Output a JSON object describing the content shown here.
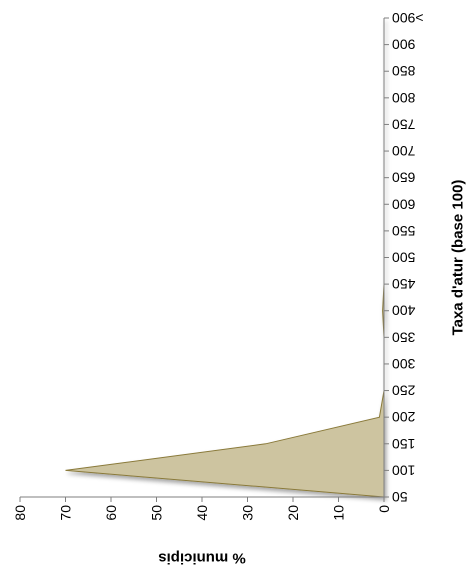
{
  "chart_data": {
    "type": "area",
    "orientation": "rotated-90",
    "title": "",
    "xlabel": "Taxa d'atur (base 100)",
    "ylabel": "% municipis",
    "categories": [
      "50",
      "100",
      "150",
      "200",
      "250",
      "300",
      "350",
      "400",
      "450",
      "500",
      "550",
      "600",
      "650",
      "700",
      "750",
      "800",
      "850",
      "900",
      ">900"
    ],
    "values": [
      0,
      70,
      26,
      1,
      0,
      0,
      0,
      0.3,
      0,
      0,
      0,
      0,
      0,
      0,
      0,
      0,
      0,
      0,
      0
    ],
    "ylim": [
      0,
      80
    ],
    "yticks": [
      "0",
      "10",
      "20",
      "30",
      "40",
      "50",
      "60",
      "70",
      "80"
    ],
    "grid": false,
    "legend": "none",
    "colors": {
      "fill": "#cdc4a0",
      "stroke": "#8a7a3a",
      "axis": "#7f7f7f"
    }
  }
}
